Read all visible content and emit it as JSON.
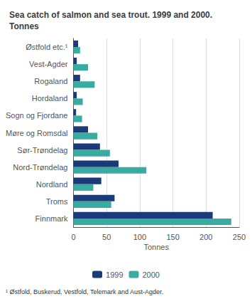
{
  "chart_data": {
    "type": "bar",
    "orientation": "horizontal",
    "title": "Sea catch of salmon and sea trout. 1999 and 2000.\nTonnes",
    "categories": [
      "Østfold etc.¹",
      "Vest-Agder",
      "Rogaland",
      "Hordaland",
      "Sogn og Fjordane",
      "Møre og Romsdal",
      "Sør-Trøndelag",
      "Nord-Trøndelag",
      "Nordland",
      "Troms",
      "Finnmark"
    ],
    "series": [
      {
        "name": "1999",
        "color": "#1a3a7a",
        "values": [
          7,
          5,
          10,
          5,
          4,
          22,
          40,
          68,
          42,
          62,
          210
        ]
      },
      {
        "name": "2000",
        "color": "#3aaba0",
        "values": [
          10,
          22,
          32,
          14,
          13,
          36,
          55,
          110,
          30,
          57,
          238
        ]
      }
    ],
    "xlabel": "Tonnes",
    "xlim": [
      0,
      250
    ],
    "xticks": [
      0,
      50,
      100,
      150,
      200,
      250
    ],
    "grid": true,
    "legend": "bottom",
    "annotations": [
      "¹ Østfold, Buskerud, Vestfold, Telemark and Aust-Agder."
    ]
  }
}
